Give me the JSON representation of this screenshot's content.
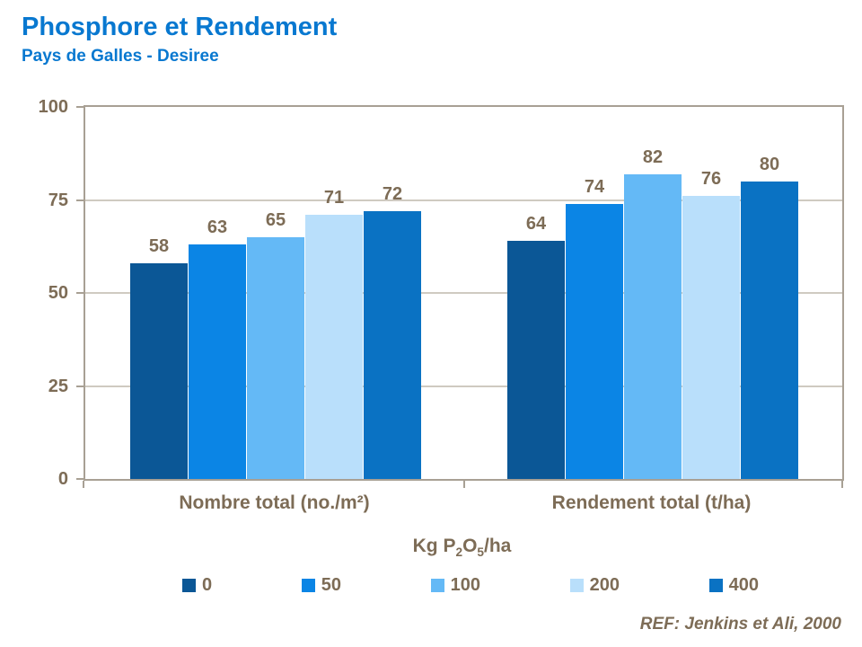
{
  "header": {
    "title": "Phosphore et Rendement",
    "subtitle": "Pays de Galles - Desiree"
  },
  "legend": {
    "title_parts": {
      "pre": "Kg P",
      "sub1": "2",
      "mid": "O",
      "sub2": "5",
      "post": "/ha"
    }
  },
  "footer": {
    "ref": "REF: Jenkins et Ali, 2000"
  },
  "colors": {
    "title_blue": "#0878d0",
    "label_taupe": "#7d6c56",
    "axis_line": "#a8a094",
    "gridline": "#cfcac1"
  },
  "chart_data": {
    "type": "bar",
    "title": "Phosphore et Rendement",
    "subtitle": "Pays de Galles - Desiree",
    "categories": [
      "Nombre total (no./m²)",
      "Rendement total (t/ha)"
    ],
    "series": [
      {
        "name": "0",
        "color": "#0b5796",
        "values": [
          58,
          64
        ]
      },
      {
        "name": "50",
        "color": "#0b85e5",
        "values": [
          63,
          74
        ]
      },
      {
        "name": "100",
        "color": "#64b9f6",
        "values": [
          65,
          82
        ]
      },
      {
        "name": "200",
        "color": "#b9dffb",
        "values": [
          71,
          76
        ]
      },
      {
        "name": "400",
        "color": "#0a72c3",
        "values": [
          72,
          80
        ]
      }
    ],
    "legend_title": "Kg P2O5/ha",
    "legend_position": "bottom",
    "xlabel": "",
    "ylabel": "",
    "ylim": [
      0,
      100
    ],
    "yticks": [
      0,
      25,
      50,
      75,
      100
    ],
    "grid": true,
    "annotation": "REF: Jenkins et Ali, 2000"
  }
}
